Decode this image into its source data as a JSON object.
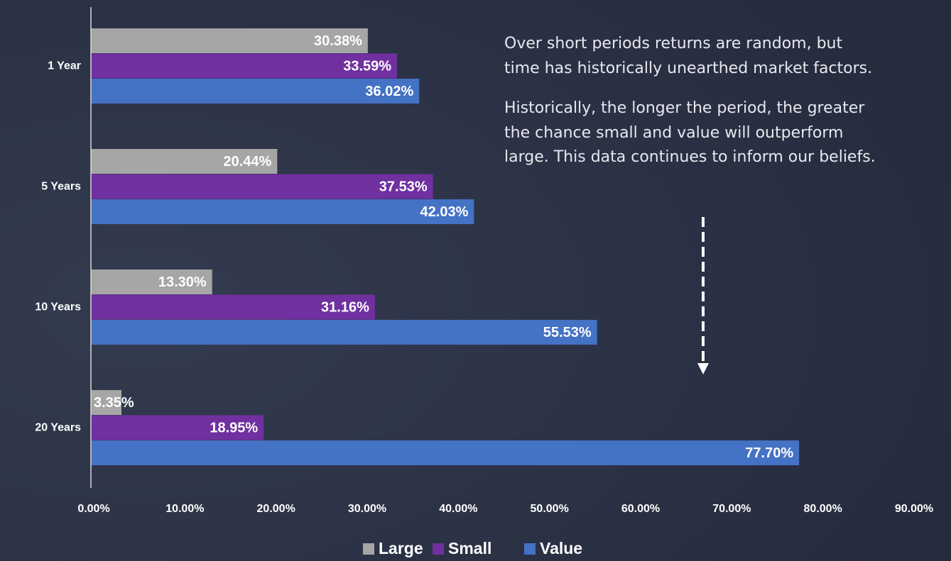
{
  "chart_data": {
    "type": "hbar",
    "categories": [
      "1 Year",
      "5 Years",
      "10 Years",
      "20 Years"
    ],
    "series": [
      {
        "name": "Large",
        "color": "#a6a6a6",
        "values": [
          30.38,
          20.44,
          13.3,
          3.35
        ],
        "value_labels": [
          "30.38%",
          "20.44%",
          "13.30%",
          "3.35%"
        ]
      },
      {
        "name": "Small",
        "color": "#7030a0",
        "values": [
          33.59,
          37.53,
          31.16,
          18.95
        ],
        "value_labels": [
          "33.59%",
          "37.53%",
          "31.16%",
          "18.95%"
        ]
      },
      {
        "name": "Value",
        "color": "#4472c4",
        "values": [
          36.02,
          42.03,
          55.53,
          77.7
        ],
        "value_labels": [
          "36.02%",
          "42.03%",
          "55.53%",
          "77.70%"
        ]
      }
    ],
    "xlim": [
      0,
      90
    ],
    "xticks": [
      {
        "value": 0,
        "label": "0.00%"
      },
      {
        "value": 10,
        "label": "10.00%"
      },
      {
        "value": 20,
        "label": "20.00%"
      },
      {
        "value": 30,
        "label": "30.00%"
      },
      {
        "value": 40,
        "label": "40.00%"
      },
      {
        "value": 50,
        "label": "50.00%"
      },
      {
        "value": 60,
        "label": "60.00%"
      },
      {
        "value": 70,
        "label": "70.00%"
      },
      {
        "value": 80,
        "label": "80.00%"
      },
      {
        "value": 90,
        "label": "90.00%"
      }
    ],
    "legend": "bottom",
    "annotations": [
      "Over short periods returns are random, but",
      "time has historically unearthed market factors.",
      "Historically, the longer the period, the greater",
      "the chance small and value will outperform",
      "large. This data continues to inform our beliefs."
    ]
  }
}
